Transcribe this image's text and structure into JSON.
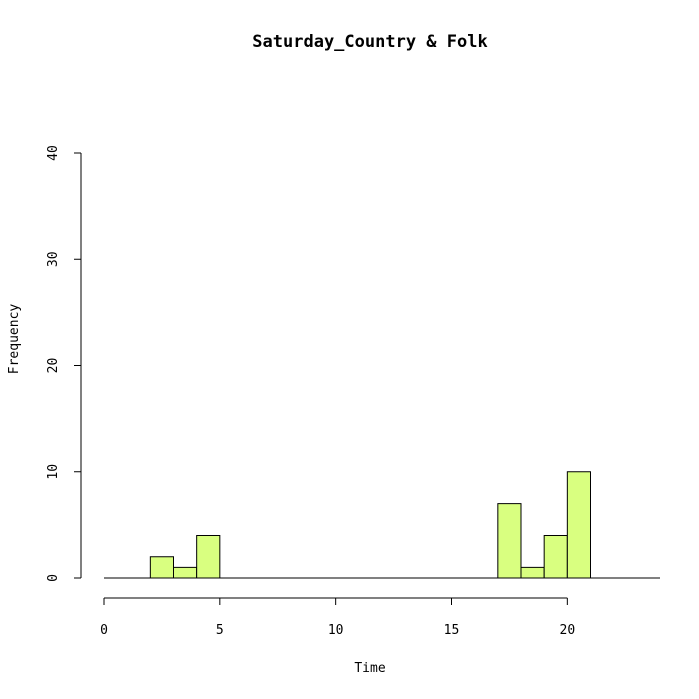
{
  "chart_data": {
    "type": "bar",
    "title": "Saturday_Country & Folk",
    "xlabel": "Time",
    "ylabel": "Frequency",
    "xlim": [
      0,
      24
    ],
    "ylim": [
      0,
      40
    ],
    "x_ticks": [
      0,
      5,
      10,
      15,
      20
    ],
    "y_ticks": [
      0,
      10,
      20,
      30,
      40
    ],
    "bin_width": 1,
    "bins": [
      {
        "start": 0,
        "end": 1,
        "count": 0
      },
      {
        "start": 1,
        "end": 2,
        "count": 0
      },
      {
        "start": 2,
        "end": 3,
        "count": 2
      },
      {
        "start": 3,
        "end": 4,
        "count": 1
      },
      {
        "start": 4,
        "end": 5,
        "count": 4
      },
      {
        "start": 5,
        "end": 6,
        "count": 0
      },
      {
        "start": 6,
        "end": 7,
        "count": 0
      },
      {
        "start": 7,
        "end": 8,
        "count": 0
      },
      {
        "start": 8,
        "end": 9,
        "count": 0
      },
      {
        "start": 9,
        "end": 10,
        "count": 0
      },
      {
        "start": 10,
        "end": 11,
        "count": 0
      },
      {
        "start": 11,
        "end": 12,
        "count": 0
      },
      {
        "start": 12,
        "end": 13,
        "count": 0
      },
      {
        "start": 13,
        "end": 14,
        "count": 0
      },
      {
        "start": 14,
        "end": 15,
        "count": 0
      },
      {
        "start": 15,
        "end": 16,
        "count": 0
      },
      {
        "start": 16,
        "end": 17,
        "count": 0
      },
      {
        "start": 17,
        "end": 18,
        "count": 7
      },
      {
        "start": 18,
        "end": 19,
        "count": 1
      },
      {
        "start": 19,
        "end": 20,
        "count": 4
      },
      {
        "start": 20,
        "end": 21,
        "count": 10
      },
      {
        "start": 21,
        "end": 22,
        "count": 0
      },
      {
        "start": 22,
        "end": 23,
        "count": 0
      },
      {
        "start": 23,
        "end": 24,
        "count": 0
      }
    ],
    "bar_color": "#d9ff80",
    "grid": false
  }
}
